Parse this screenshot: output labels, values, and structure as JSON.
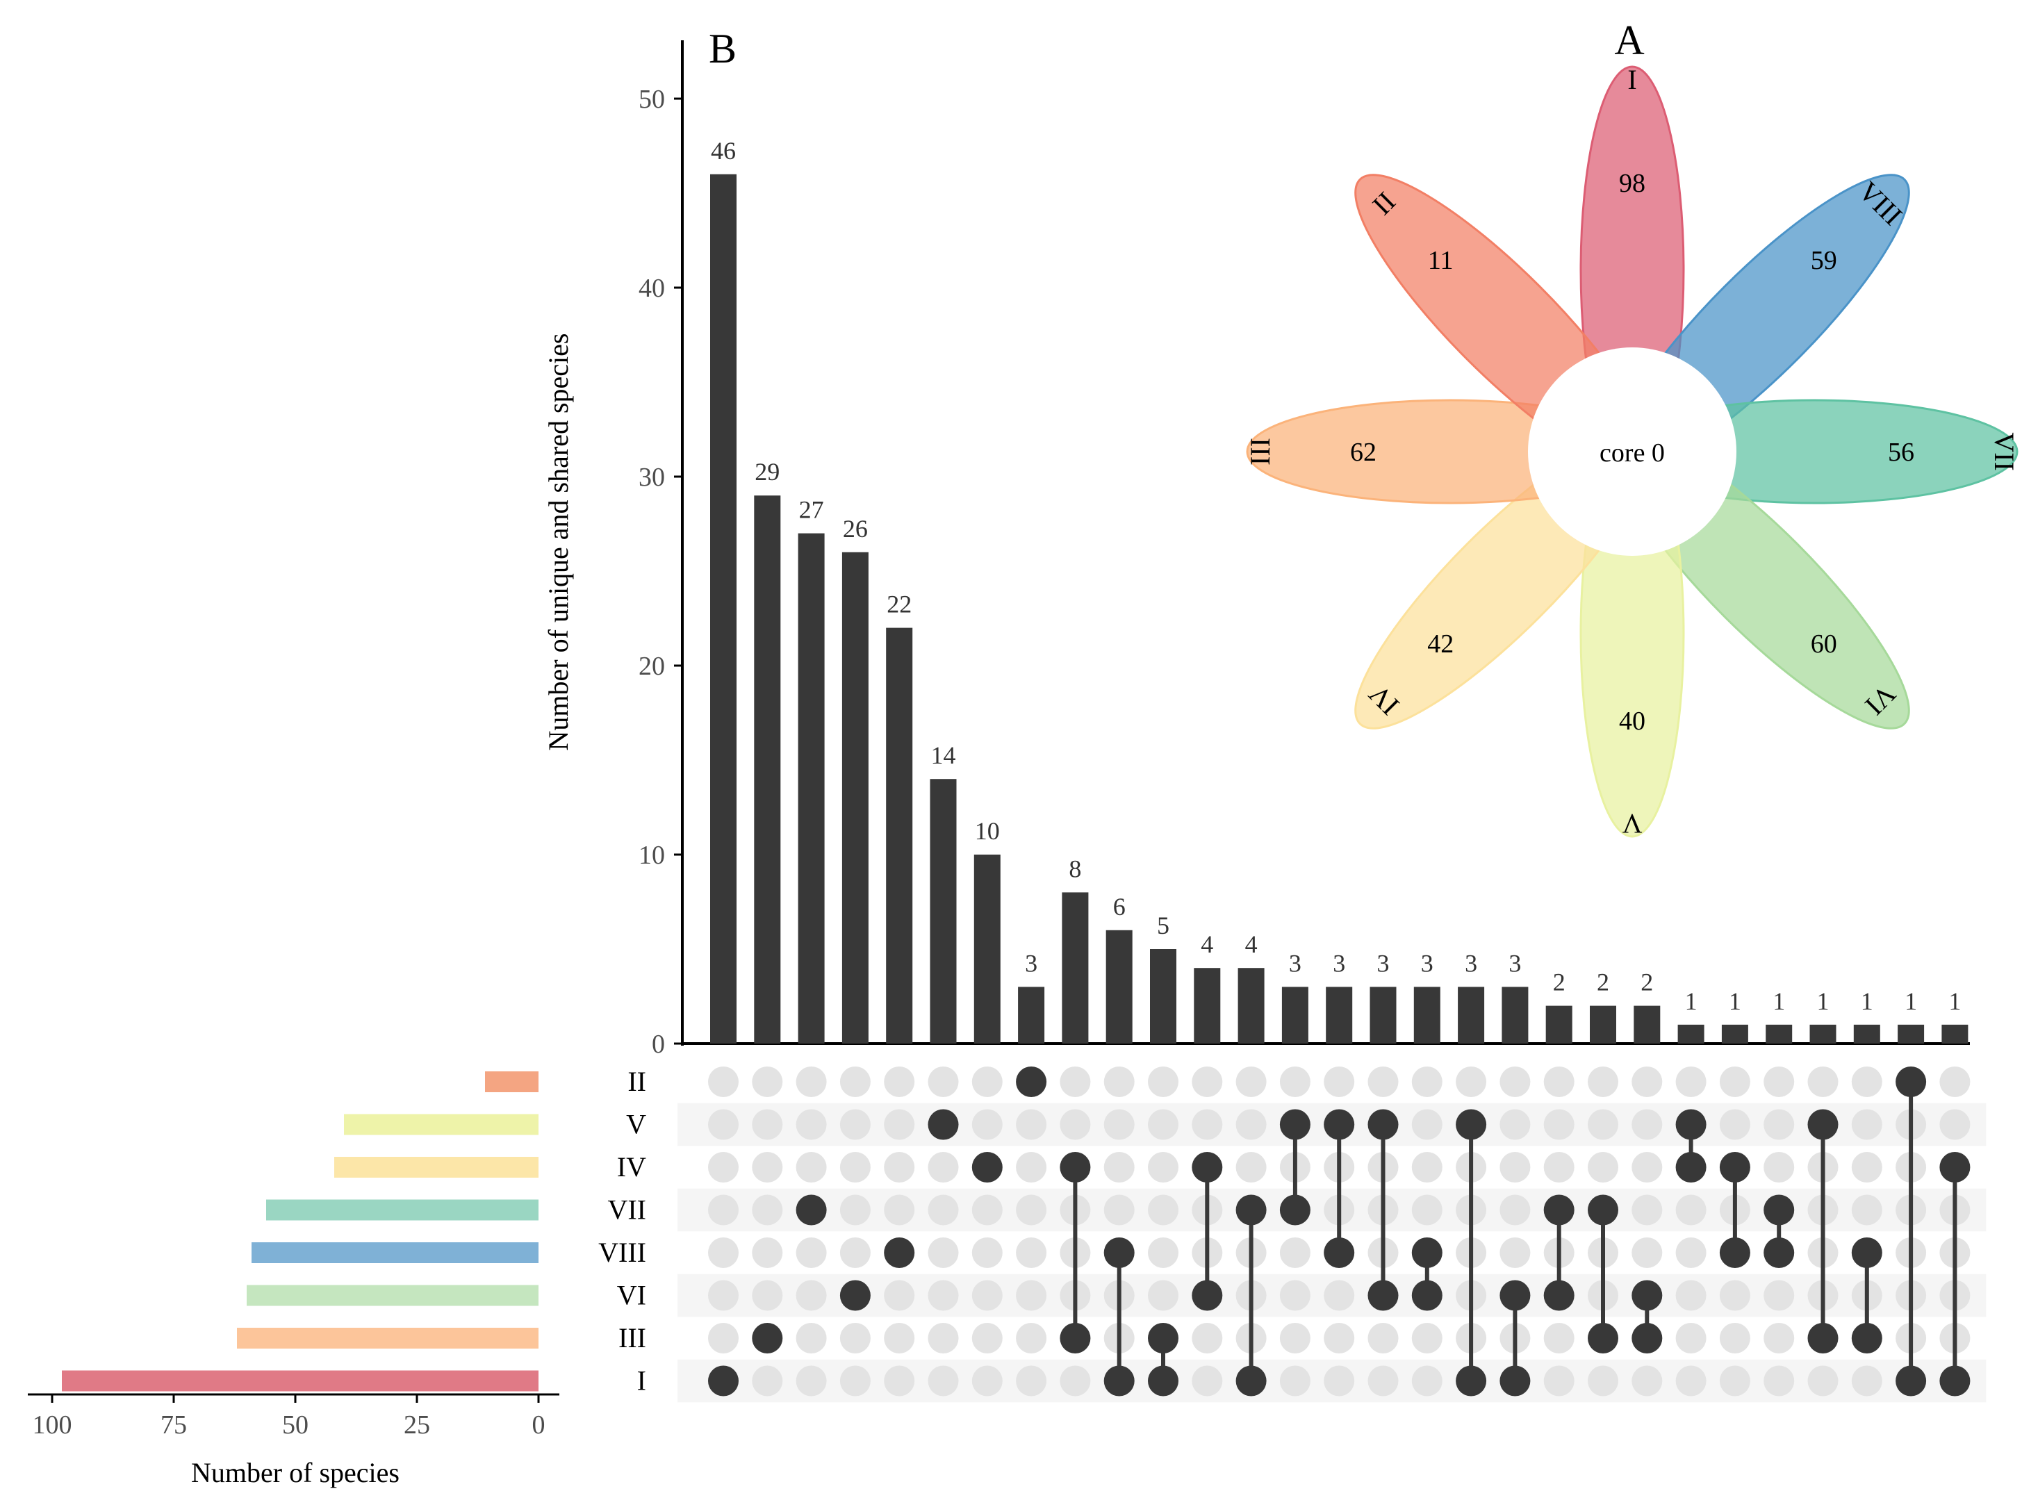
{
  "panels": {
    "a": "A",
    "b": "B"
  },
  "upset": {
    "type": "bar",
    "ylabel": "Number of unique and shared species",
    "ylim": [
      0,
      52
    ],
    "yticks": [
      0,
      10,
      20,
      30,
      40,
      50
    ],
    "sets": [
      "II",
      "V",
      "IV",
      "VII",
      "VIII",
      "VI",
      "III",
      "I"
    ],
    "intersections": [
      {
        "sets": [
          "I"
        ],
        "value": 46
      },
      {
        "sets": [
          "III"
        ],
        "value": 29
      },
      {
        "sets": [
          "VII"
        ],
        "value": 27
      },
      {
        "sets": [
          "VI"
        ],
        "value": 26
      },
      {
        "sets": [
          "VIII"
        ],
        "value": 22
      },
      {
        "sets": [
          "V"
        ],
        "value": 14
      },
      {
        "sets": [
          "IV"
        ],
        "value": 10
      },
      {
        "sets": [
          "II"
        ],
        "value": 3
      },
      {
        "sets": [
          "IV",
          "III"
        ],
        "value": 8
      },
      {
        "sets": [
          "VIII",
          "I"
        ],
        "value": 6
      },
      {
        "sets": [
          "III",
          "I"
        ],
        "value": 5
      },
      {
        "sets": [
          "IV",
          "VI"
        ],
        "value": 4
      },
      {
        "sets": [
          "VII",
          "I"
        ],
        "value": 4
      },
      {
        "sets": [
          "V",
          "VII"
        ],
        "value": 3
      },
      {
        "sets": [
          "V",
          "VIII"
        ],
        "value": 3
      },
      {
        "sets": [
          "V",
          "VI"
        ],
        "value": 3
      },
      {
        "sets": [
          "VIII",
          "VI"
        ],
        "value": 3
      },
      {
        "sets": [
          "V",
          "I"
        ],
        "value": 3
      },
      {
        "sets": [
          "VI",
          "I"
        ],
        "value": 3
      },
      {
        "sets": [
          "VII",
          "VI"
        ],
        "value": 2
      },
      {
        "sets": [
          "VII",
          "III"
        ],
        "value": 2
      },
      {
        "sets": [
          "VI",
          "III"
        ],
        "value": 2
      },
      {
        "sets": [
          "V",
          "IV"
        ],
        "value": 1
      },
      {
        "sets": [
          "IV",
          "VIII"
        ],
        "value": 1
      },
      {
        "sets": [
          "VII",
          "VIII"
        ],
        "value": 1
      },
      {
        "sets": [
          "V",
          "III"
        ],
        "value": 1
      },
      {
        "sets": [
          "VIII",
          "III"
        ],
        "value": 1
      },
      {
        "sets": [
          "II",
          "I"
        ],
        "value": 1
      },
      {
        "sets": [
          "IV",
          "I"
        ],
        "value": 1
      }
    ]
  },
  "set_sizes": {
    "type": "bar",
    "xlabel": "Number of species",
    "xlim": [
      0,
      105
    ],
    "xticks": [
      100,
      75,
      50,
      25,
      0
    ],
    "sets": [
      "II",
      "V",
      "IV",
      "VII",
      "VIII",
      "VI",
      "III",
      "I"
    ],
    "values": [
      11,
      40,
      42,
      56,
      59,
      60,
      62,
      98
    ],
    "colors": [
      "#F4A582",
      "#EEF3A9",
      "#FCE6A8",
      "#9AD6C2",
      "#7FB1D6",
      "#C5E6BF",
      "#FCC59A",
      "#E07A86"
    ]
  },
  "flower": {
    "core_label": "core 0",
    "petals": [
      {
        "name": "I",
        "count": "98",
        "color": "#DC5D73"
      },
      {
        "name": "VIII",
        "count": "59",
        "color": "#4A93C8"
      },
      {
        "name": "VII",
        "count": "56",
        "color": "#5EC2A2"
      },
      {
        "name": "VI",
        "count": "60",
        "color": "#A6D99A"
      },
      {
        "name": "V",
        "count": "40",
        "color": "#E8F1A0"
      },
      {
        "name": "IV",
        "count": "42",
        "color": "#FCE19B"
      },
      {
        "name": "III",
        "count": "62",
        "color": "#FBB37A"
      },
      {
        "name": "II",
        "count": "11",
        "color": "#F27F65"
      }
    ]
  },
  "colors": {
    "bar": "#383838",
    "dot_on": "#383838",
    "dot_off": "#E3E3E3",
    "stripe": "#F5F5F5"
  }
}
